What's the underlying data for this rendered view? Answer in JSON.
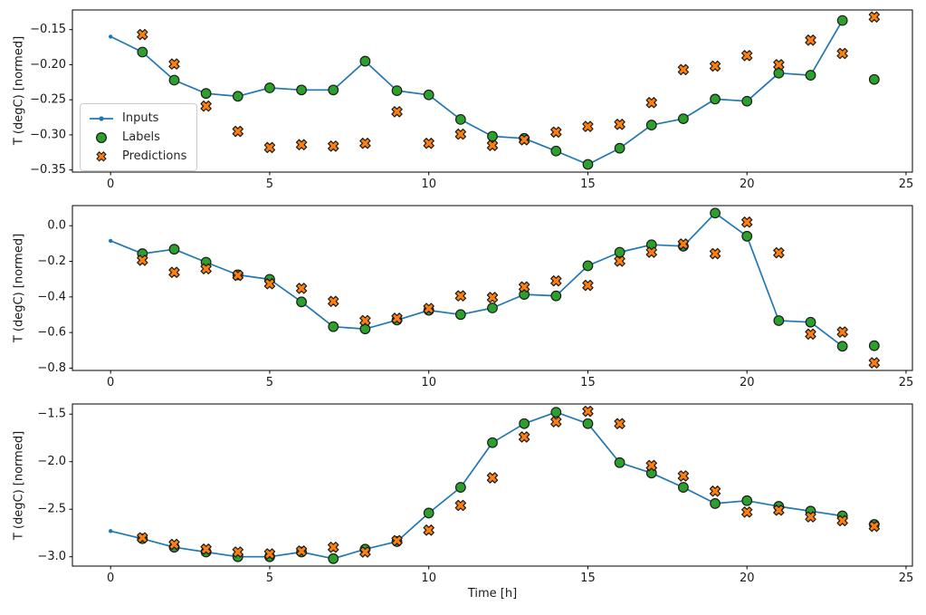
{
  "figure": {
    "xlabel": "Time [h]",
    "legend": {
      "items": [
        {
          "label": "Inputs"
        },
        {
          "label": "Labels"
        },
        {
          "label": "Predictions"
        }
      ]
    },
    "colors": {
      "inputs_line": "#1f77b4",
      "labels_fill": "#2ca02c",
      "predictions_fill": "#ff7f0e",
      "marker_edge": "#1c1c1c",
      "axis": "#000000",
      "text": "#1a1a1a"
    }
  },
  "chart_data": [
    {
      "type": "line",
      "ylabel": "T (degC) [normed]",
      "xlim": [
        -1.2,
        25.2
      ],
      "ylim": [
        -0.353,
        -0.122
      ],
      "grid": false,
      "xticks": {
        "values": [
          0,
          5,
          10,
          15,
          20,
          25
        ],
        "labels": [
          "0",
          "5",
          "10",
          "15",
          "20",
          "25"
        ]
      },
      "yticks": {
        "values": [
          -0.15,
          -0.2,
          -0.25,
          -0.3,
          -0.35
        ],
        "labels": [
          "−0.15",
          "−0.20",
          "−0.25",
          "−0.30",
          "−0.35"
        ]
      },
      "series": [
        {
          "name": "Inputs",
          "kind": "line",
          "marker": "dot",
          "x": [
            0,
            1,
            2,
            3,
            4,
            5,
            6,
            7,
            8,
            9,
            10,
            11,
            12,
            13,
            14,
            15,
            16,
            17,
            18,
            19,
            20,
            21,
            22,
            23
          ],
          "y": [
            -0.16,
            -0.182,
            -0.222,
            -0.241,
            -0.245,
            -0.233,
            -0.236,
            -0.236,
            -0.195,
            -0.237,
            -0.243,
            -0.278,
            -0.302,
            -0.305,
            -0.323,
            -0.342,
            -0.319,
            -0.286,
            -0.277,
            -0.249,
            -0.252,
            -0.212,
            -0.215,
            -0.137
          ]
        },
        {
          "name": "Labels",
          "kind": "scatter",
          "marker": "circle",
          "x": [
            1,
            2,
            3,
            4,
            5,
            6,
            7,
            8,
            9,
            10,
            11,
            12,
            13,
            14,
            15,
            16,
            17,
            18,
            19,
            20,
            21,
            22,
            23,
            24
          ],
          "y": [
            -0.182,
            -0.222,
            -0.241,
            -0.245,
            -0.233,
            -0.236,
            -0.236,
            -0.195,
            -0.237,
            -0.243,
            -0.278,
            -0.302,
            -0.305,
            -0.323,
            -0.342,
            -0.319,
            -0.286,
            -0.277,
            -0.249,
            -0.252,
            -0.212,
            -0.215,
            -0.137,
            -0.221
          ]
        },
        {
          "name": "Predictions",
          "kind": "scatter",
          "marker": "x-cross",
          "x": [
            1,
            2,
            3,
            4,
            5,
            6,
            7,
            8,
            9,
            10,
            11,
            12,
            13,
            14,
            15,
            16,
            17,
            18,
            19,
            20,
            21,
            22,
            23,
            24
          ],
          "y": [
            -0.157,
            -0.199,
            -0.259,
            -0.295,
            -0.318,
            -0.314,
            -0.316,
            -0.312,
            -0.267,
            -0.312,
            -0.299,
            -0.315,
            -0.307,
            -0.296,
            -0.288,
            -0.285,
            -0.254,
            -0.207,
            -0.202,
            -0.187,
            -0.2,
            -0.165,
            -0.184,
            -0.132
          ]
        }
      ]
    },
    {
      "type": "line",
      "ylabel": "T (degC) [normed]",
      "xlim": [
        -1.2,
        25.2
      ],
      "ylim": [
        -0.813,
        0.113
      ],
      "grid": false,
      "xticks": {
        "values": [
          0,
          5,
          10,
          15,
          20,
          25
        ],
        "labels": [
          "0",
          "5",
          "10",
          "15",
          "20",
          "25"
        ]
      },
      "yticks": {
        "values": [
          0.0,
          -0.2,
          -0.4,
          -0.6,
          -0.8
        ],
        "labels": [
          "0.0",
          "−0.2",
          "−0.4",
          "−0.6",
          "−0.8"
        ]
      },
      "series": [
        {
          "name": "Inputs",
          "kind": "line",
          "marker": "dot",
          "x": [
            0,
            1,
            2,
            3,
            4,
            5,
            6,
            7,
            8,
            9,
            10,
            11,
            12,
            13,
            14,
            15,
            16,
            17,
            18,
            19,
            20,
            21,
            22,
            23
          ],
          "y": [
            -0.085,
            -0.157,
            -0.132,
            -0.205,
            -0.276,
            -0.301,
            -0.428,
            -0.567,
            -0.58,
            -0.53,
            -0.475,
            -0.499,
            -0.462,
            -0.386,
            -0.394,
            -0.225,
            -0.149,
            -0.107,
            -0.115,
            0.071,
            -0.059,
            -0.533,
            -0.542,
            -0.677
          ]
        },
        {
          "name": "Labels",
          "kind": "scatter",
          "marker": "circle",
          "x": [
            1,
            2,
            3,
            4,
            5,
            6,
            7,
            8,
            9,
            10,
            11,
            12,
            13,
            14,
            15,
            16,
            17,
            18,
            19,
            20,
            21,
            22,
            23,
            24
          ],
          "y": [
            -0.157,
            -0.132,
            -0.205,
            -0.276,
            -0.301,
            -0.428,
            -0.567,
            -0.58,
            -0.53,
            -0.475,
            -0.499,
            -0.462,
            -0.386,
            -0.394,
            -0.225,
            -0.149,
            -0.107,
            -0.115,
            0.071,
            -0.059,
            -0.533,
            -0.542,
            -0.677,
            -0.674
          ]
        },
        {
          "name": "Predictions",
          "kind": "scatter",
          "marker": "x-cross",
          "x": [
            1,
            2,
            3,
            4,
            5,
            6,
            7,
            8,
            9,
            10,
            11,
            12,
            13,
            14,
            15,
            16,
            17,
            18,
            19,
            20,
            21,
            22,
            23,
            24
          ],
          "y": [
            -0.194,
            -0.262,
            -0.242,
            -0.279,
            -0.326,
            -0.352,
            -0.425,
            -0.533,
            -0.52,
            -0.465,
            -0.394,
            -0.403,
            -0.344,
            -0.31,
            -0.335,
            -0.199,
            -0.149,
            -0.103,
            -0.157,
            0.02,
            -0.152,
            -0.609,
            -0.597,
            -0.77
          ]
        }
      ]
    },
    {
      "type": "line",
      "ylabel": "T (degC) [normed]",
      "xlim": [
        -1.2,
        25.2
      ],
      "ylim": [
        -3.098,
        -1.393
      ],
      "grid": false,
      "xticks": {
        "values": [
          0,
          5,
          10,
          15,
          20,
          25
        ],
        "labels": [
          "0",
          "5",
          "10",
          "15",
          "20",
          "25"
        ]
      },
      "yticks": {
        "values": [
          -1.5,
          -2.0,
          -2.5,
          -3.0
        ],
        "labels": [
          "−1.5",
          "−2.0",
          "−2.5",
          "−3.0"
        ]
      },
      "series": [
        {
          "name": "Inputs",
          "kind": "line",
          "marker": "dot",
          "x": [
            0,
            1,
            2,
            3,
            4,
            5,
            6,
            7,
            8,
            9,
            10,
            11,
            12,
            13,
            14,
            15,
            16,
            17,
            18,
            19,
            20,
            21,
            22,
            23
          ],
          "y": [
            -2.73,
            -2.81,
            -2.9,
            -2.95,
            -3.0,
            -3.0,
            -2.95,
            -3.02,
            -2.92,
            -2.84,
            -2.54,
            -2.27,
            -1.8,
            -1.6,
            -1.48,
            -1.6,
            -2.01,
            -2.12,
            -2.27,
            -2.44,
            -2.41,
            -2.47,
            -2.52,
            -2.57
          ]
        },
        {
          "name": "Labels",
          "kind": "scatter",
          "marker": "circle",
          "x": [
            1,
            2,
            3,
            4,
            5,
            6,
            7,
            8,
            9,
            10,
            11,
            12,
            13,
            14,
            15,
            16,
            17,
            18,
            19,
            20,
            21,
            22,
            23,
            24
          ],
          "y": [
            -2.81,
            -2.9,
            -2.95,
            -3.0,
            -3.0,
            -2.95,
            -3.02,
            -2.92,
            -2.84,
            -2.54,
            -2.27,
            -1.8,
            -1.6,
            -1.48,
            -1.6,
            -2.01,
            -2.12,
            -2.27,
            -2.44,
            -2.41,
            -2.47,
            -2.52,
            -2.57,
            -2.66
          ]
        },
        {
          "name": "Predictions",
          "kind": "scatter",
          "marker": "x-cross",
          "x": [
            1,
            2,
            3,
            4,
            5,
            6,
            7,
            8,
            9,
            10,
            11,
            12,
            13,
            14,
            15,
            16,
            17,
            18,
            19,
            20,
            21,
            22,
            23,
            24
          ],
          "y": [
            -2.8,
            -2.87,
            -2.92,
            -2.95,
            -2.97,
            -2.94,
            -2.9,
            -2.95,
            -2.83,
            -2.72,
            -2.46,
            -2.17,
            -1.74,
            -1.58,
            -1.47,
            -1.6,
            -2.04,
            -2.15,
            -2.31,
            -2.53,
            -2.51,
            -2.58,
            -2.62,
            -2.68
          ]
        }
      ]
    }
  ]
}
